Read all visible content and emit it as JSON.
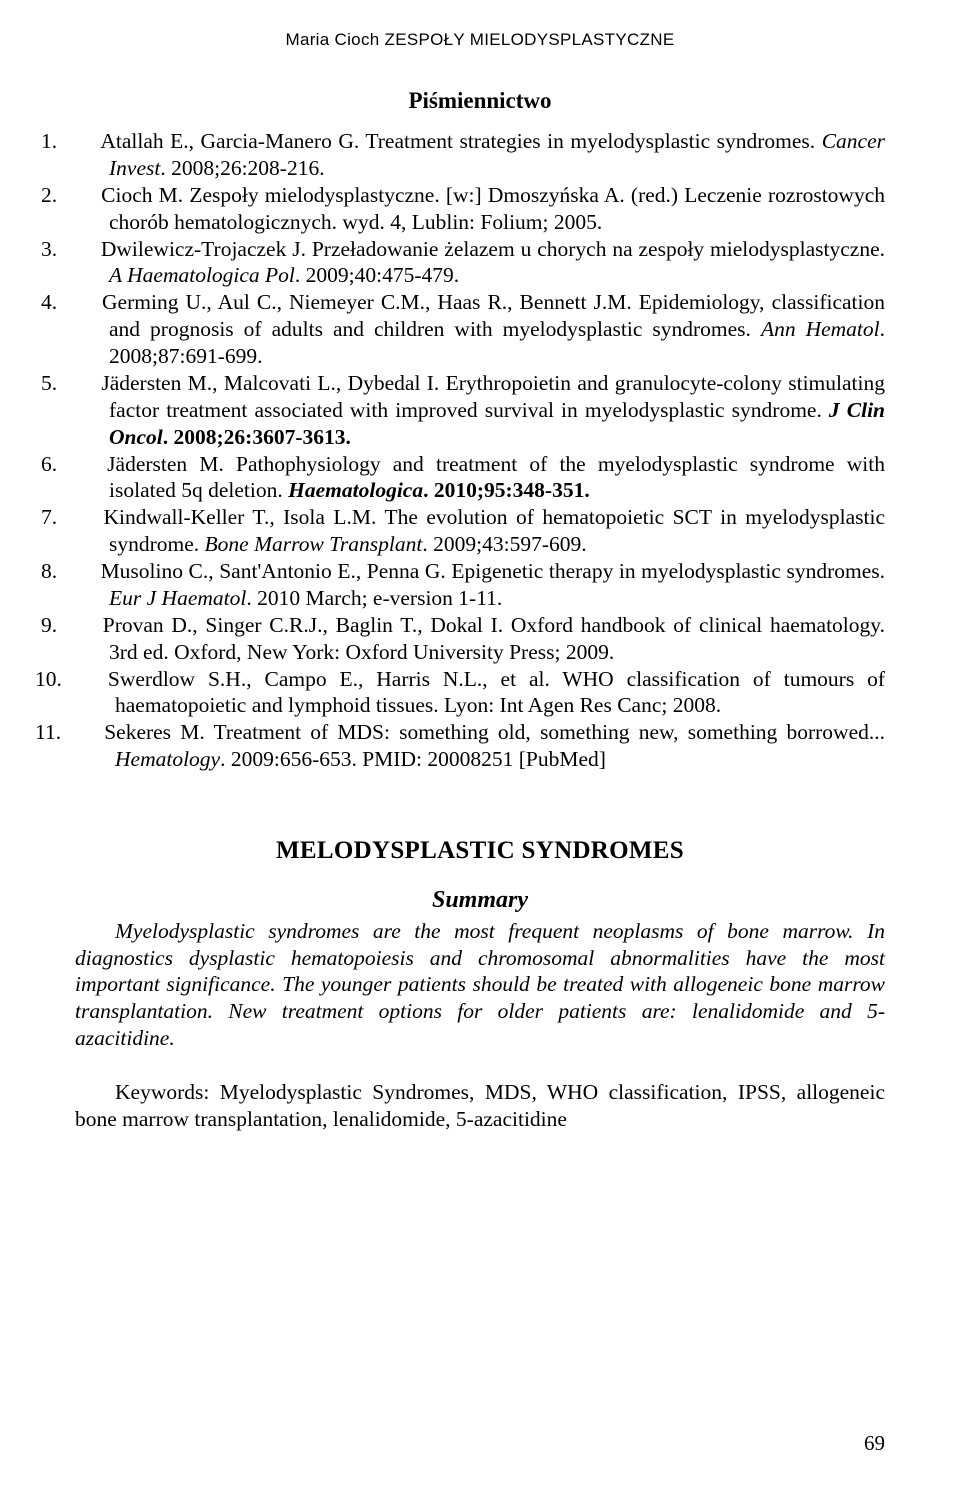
{
  "header": {
    "running": "Maria Cioch ZESPOŁY MIELODYSPLASTYCZNE"
  },
  "bibliography": {
    "heading": "Piśmiennictwo",
    "items": [
      {
        "n": "1.",
        "html": "Atallah E., Garcia-Manero G. Treatment strategies in myelodysplastic syndromes. <span class=\"italic\">Cancer Invest</span>. 2008;26:208-216."
      },
      {
        "n": "2.",
        "html": "Cioch M. Zespoły mielodysplastyczne. [w:] Dmoszyńska A. (red.) Leczenie rozrostowych chorób hematologicznych. wyd. 4, Lublin: Folium; 2005."
      },
      {
        "n": "3.",
        "html": "Dwilewicz-Trojaczek J. Przeładowanie żelazem u chorych na zespoły mielodysplastyczne. <span class=\"italic\">A Haematologica Pol</span>. 2009;40:475-479."
      },
      {
        "n": "4.",
        "html": "Germing U., Aul C., Niemeyer C.M., Haas R., Bennett J.M. Epidemiology, classification and prognosis of adults and children with myelodysplastic syndromes. <span class=\"italic\">Ann Hematol</span>. 2008;87:691-699."
      },
      {
        "n": "5.",
        "html": "Jädersten M., Malcovati L., Dybedal I. Erythropoietin and granulocyte-colony stimulating factor treatment associated with improved survival in myelodysplastic syndrome. <span class=\"bold italic\">J Clin Oncol</span><span class=\"bold\">. 2008;26:3607-3613.</span>"
      },
      {
        "n": "6.",
        "html": "Jädersten M. Pathophysiology and treatment of the myelodysplastic syndrome with isolated 5q deletion. <span class=\"bold italic\">Haematologica</span><span class=\"bold\">. 2010;95:348-351.</span>"
      },
      {
        "n": "7.",
        "html": "Kindwall-Keller T., Isola L.M. The evolution of hematopoietic SCT in myelodysplastic syndrome. <span class=\"italic\">Bone Marrow Transplant</span>. 2009;43:597-609."
      },
      {
        "n": "8.",
        "html": "Musolino C., Sant'Antonio E., Penna G. Epigenetic therapy in myelodysplastic syndromes. <span class=\"italic\">Eur J Haematol</span>. 2010 March; e-version 1-11."
      },
      {
        "n": "9.",
        "html": "Provan D., Singer C.R.J., Baglin T., Dokal I. Oxford handbook of clinical haematology. 3rd ed. Oxford, New York: Oxford University Press; 2009."
      },
      {
        "n": "10.",
        "html": "Swerdlow S.H., Campo E., Harris N.L., et al. WHO classification of tumours of haematopoietic and lymphoid tissues. Lyon: Int Agen Res Canc; 2008."
      },
      {
        "n": "11.",
        "html": "Sekeres M. Treatment of MDS: something old, something new, something borrowed... <span class=\"italic\">Hematology</span>. 2009:656-653. PMID: 20008251 [PubMed]"
      }
    ]
  },
  "english": {
    "title": "MELODYSPLASTIC SYNDROMES",
    "summary_heading": "Summary",
    "summary_body": "Myelodysplastic syndromes are the most frequent neoplasms of bone marrow. In diagnostics dysplastic hematopoiesis and chromosomal abnormalities have the most important significance. The younger patients should be treated with allogeneic bone marrow transplantation. New treatment options for older patients are: lenalidomide and 5-azacitidine.",
    "keywords": "Keywords: Myelodysplastic Syndromes, MDS, WHO classification, IPSS, allogeneic bone marrow transplantation, lenalidomide, 5-azacitidine"
  },
  "page_number": "69"
}
